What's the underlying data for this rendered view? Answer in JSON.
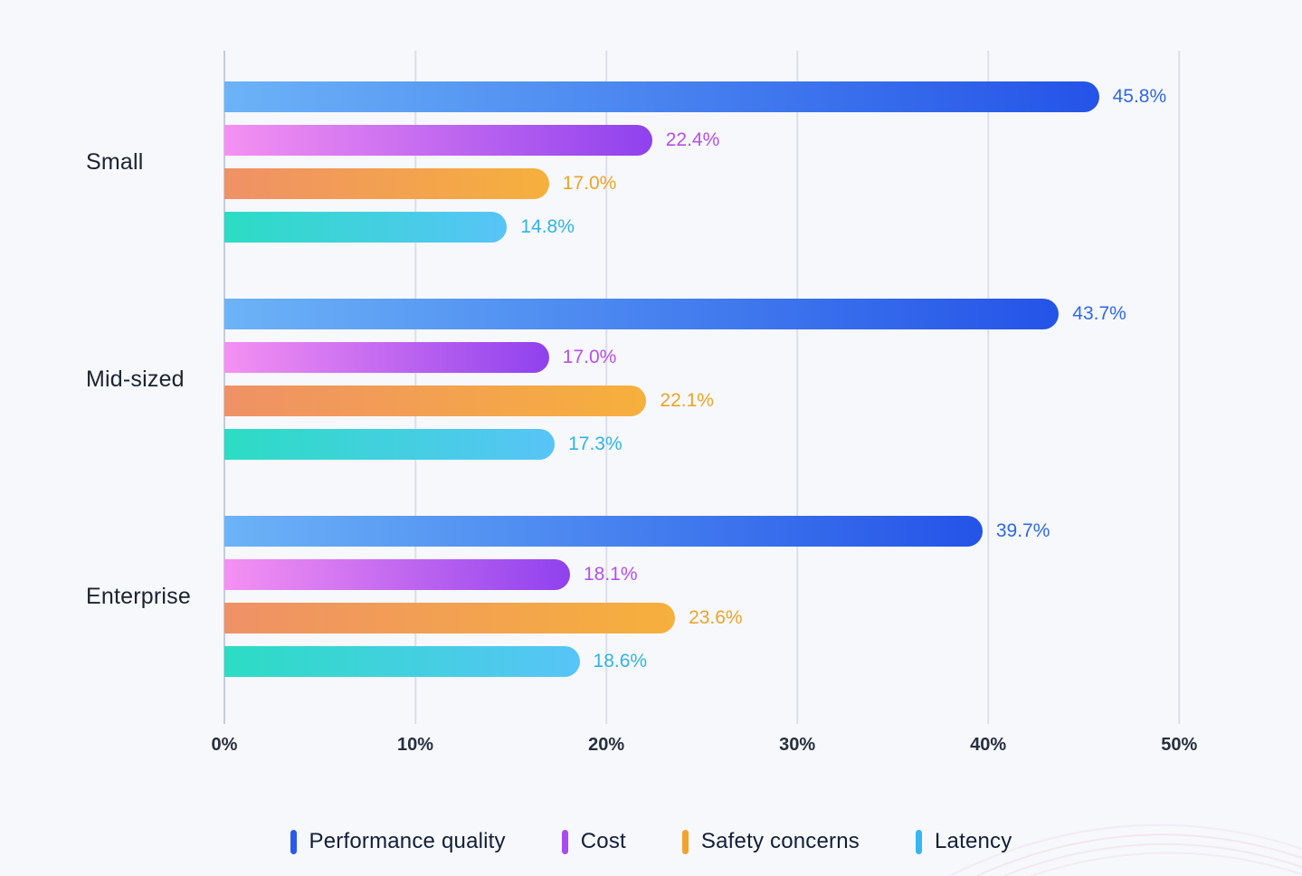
{
  "chart_data": {
    "type": "bar",
    "orientation": "horizontal",
    "title": "",
    "xlabel": "",
    "ylabel": "",
    "grid": "vertical",
    "legend_position": "bottom",
    "categories": [
      "Small",
      "Mid-sized",
      "Enterprise"
    ],
    "series": [
      {
        "name": "Performance quality",
        "values": [
          45.8,
          43.7,
          39.7
        ],
        "labels": [
          "45.8%",
          "43.7%",
          "39.7%"
        ],
        "gradient": [
          "#6cb3f7",
          "#2453e8"
        ],
        "label_color": "#2f68ea",
        "legend_color": "#2b59ee"
      },
      {
        "name": "Cost",
        "values": [
          22.4,
          17.0,
          18.1
        ],
        "labels": [
          "22.4%",
          "17.0%",
          "18.1%"
        ],
        "gradient": [
          "#f591f2",
          "#8f41ee"
        ],
        "label_color": "#b44ff0",
        "legend_color": "#a84bf0"
      },
      {
        "name": "Safety concerns",
        "values": [
          17.0,
          22.1,
          23.6
        ],
        "labels": [
          "17.0%",
          "22.1%",
          "23.6%"
        ],
        "gradient": [
          "#ef9166",
          "#f6b03c"
        ],
        "label_color": "#eca428",
        "legend_color": "#f2a22e"
      },
      {
        "name": "Latency",
        "values": [
          14.8,
          17.3,
          18.6
        ],
        "labels": [
          "14.8%",
          "17.3%",
          "18.6%"
        ],
        "gradient": [
          "#2cdcc4",
          "#58c4f8"
        ],
        "label_color": "#2fb4e9",
        "legend_color": "#34b7f2"
      }
    ],
    "x_ticks": [
      "0%",
      "10%",
      "20%",
      "30%",
      "40%",
      "50%"
    ],
    "x_tick_values": [
      0,
      10,
      20,
      30,
      40,
      50
    ],
    "xlim": [
      0,
      52.5
    ]
  }
}
